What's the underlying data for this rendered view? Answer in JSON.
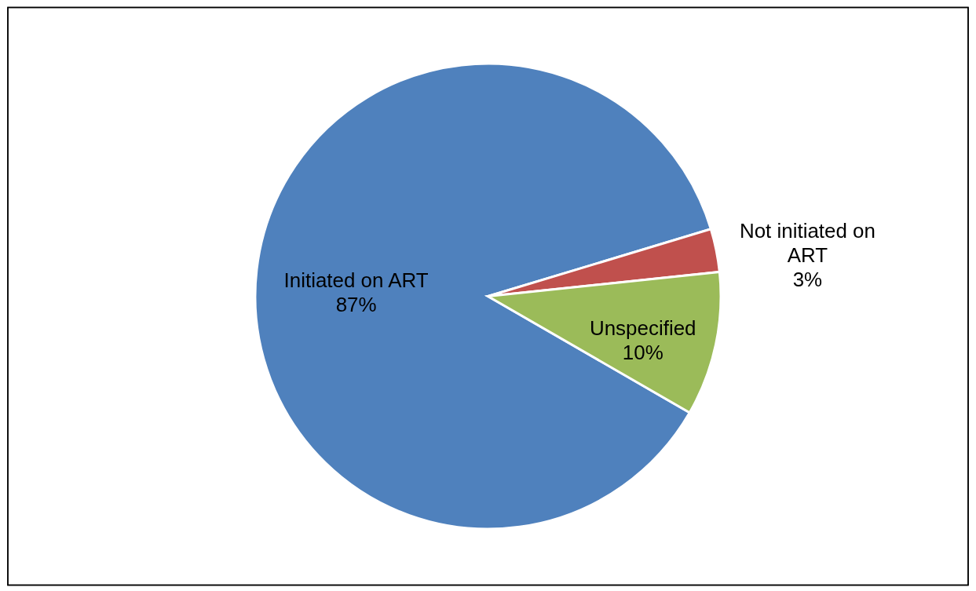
{
  "chart_data": {
    "type": "pie",
    "categories": [
      "Initiated on ART",
      "Not initiated on ART",
      "Unspecified"
    ],
    "values": [
      87,
      3,
      10
    ],
    "value_labels": [
      "87%",
      "3%",
      "10%"
    ],
    "colors": [
      "#4f81bd",
      "#c0504d",
      "#9bbb59"
    ],
    "legend": false
  }
}
